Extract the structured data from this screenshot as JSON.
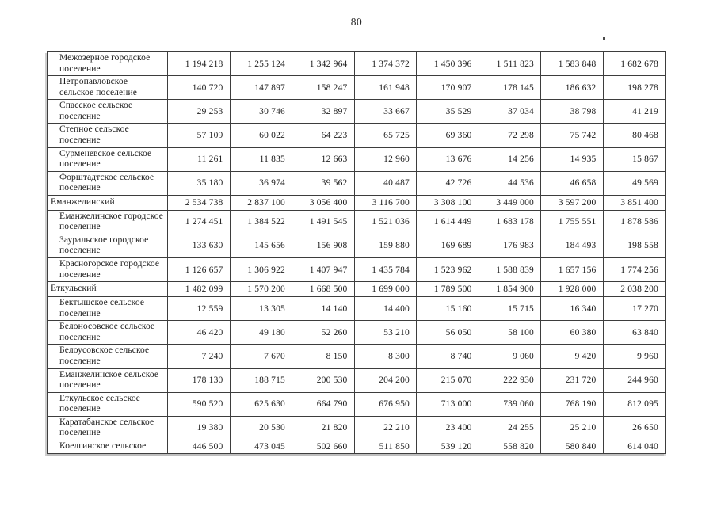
{
  "page": {
    "number": "80"
  },
  "table": {
    "rows": [
      {
        "name": "Межозерное городское поселение",
        "level": "settlement",
        "values": [
          "1 194 218",
          "1 255 124",
          "1 342 964",
          "1 374 372",
          "1 450 396",
          "1 511 823",
          "1 583 848",
          "1 682 678"
        ]
      },
      {
        "name": "Петропавловское сельское поселение",
        "level": "settlement",
        "values": [
          "140 720",
          "147 897",
          "158 247",
          "161 948",
          "170 907",
          "178 145",
          "186 632",
          "198 278"
        ]
      },
      {
        "name": "Спасское сельское поселение",
        "level": "settlement",
        "values": [
          "29 253",
          "30 746",
          "32 897",
          "33 667",
          "35 529",
          "37 034",
          "38 798",
          "41 219"
        ]
      },
      {
        "name": "Степное сельское поселение",
        "level": "settlement",
        "values": [
          "57 109",
          "60 022",
          "64 223",
          "65 725",
          "69 360",
          "72 298",
          "75 742",
          "80 468"
        ]
      },
      {
        "name": "Сурменевское сельское поселение",
        "level": "settlement",
        "values": [
          "11 261",
          "11 835",
          "12 663",
          "12 960",
          "13 676",
          "14 256",
          "14 935",
          "15 867"
        ]
      },
      {
        "name": "Форштадтское сельское поселение",
        "level": "settlement",
        "values": [
          "35 180",
          "36 974",
          "39 562",
          "40 487",
          "42 726",
          "44 536",
          "46 658",
          "49 569"
        ]
      },
      {
        "name": "Еманжелинский",
        "level": "district",
        "values": [
          "2 534 738",
          "2 837 100",
          "3 056 400",
          "3 116 700",
          "3 308 100",
          "3 449 000",
          "3 597 200",
          "3 851 400"
        ]
      },
      {
        "name": "Еманжелинское городское поселение",
        "level": "settlement",
        "values": [
          "1 274 451",
          "1 384 522",
          "1 491 545",
          "1 521 036",
          "1 614 449",
          "1 683 178",
          "1 755 551",
          "1 878 586"
        ]
      },
      {
        "name": "Зауральское городское поселение",
        "level": "settlement",
        "values": [
          "133 630",
          "145 656",
          "156 908",
          "159 880",
          "169 689",
          "176 983",
          "184 493",
          "198 558"
        ]
      },
      {
        "name": "Красногорское городское поселение",
        "level": "settlement",
        "values": [
          "1 126 657",
          "1 306 922",
          "1 407 947",
          "1 435 784",
          "1 523 962",
          "1 588 839",
          "1 657 156",
          "1 774 256"
        ]
      },
      {
        "name": "Еткульский",
        "level": "district",
        "values": [
          "1 482 099",
          "1 570 200",
          "1 668 500",
          "1 699 000",
          "1 789 500",
          "1 854 900",
          "1 928 000",
          "2 038 200"
        ]
      },
      {
        "name": "Бектышское сельское поселение",
        "level": "settlement",
        "values": [
          "12 559",
          "13 305",
          "14 140",
          "14 400",
          "15 160",
          "15 715",
          "16 340",
          "17 270"
        ]
      },
      {
        "name": "Белоносовское сельское поселение",
        "level": "settlement",
        "values": [
          "46 420",
          "49 180",
          "52 260",
          "53 210",
          "56 050",
          "58 100",
          "60 380",
          "63 840"
        ]
      },
      {
        "name": "Белоусовское сельское поселение",
        "level": "settlement",
        "values": [
          "7 240",
          "7 670",
          "8 150",
          "8 300",
          "8 740",
          "9 060",
          "9 420",
          "9 960"
        ]
      },
      {
        "name": "Еманжелинское сельское поселение",
        "level": "settlement",
        "values": [
          "178 130",
          "188 715",
          "200 530",
          "204 200",
          "215 070",
          "222 930",
          "231 720",
          "244 960"
        ]
      },
      {
        "name": "Еткульское сельское поселение",
        "level": "settlement",
        "values": [
          "590 520",
          "625 630",
          "664 790",
          "676 950",
          "713 000",
          "739 060",
          "768 190",
          "812 095"
        ]
      },
      {
        "name": "Каратабанское сельское поселение",
        "level": "settlement",
        "values": [
          "19 380",
          "20 530",
          "21 820",
          "22 210",
          "23 400",
          "24 255",
          "25 210",
          "26 650"
        ]
      },
      {
        "name": "Коелгинское сельское",
        "level": "settlement",
        "partial": true,
        "values": [
          "446 500",
          "473 045",
          "502 660",
          "511 850",
          "539 120",
          "558 820",
          "580 840",
          "614 040"
        ]
      }
    ]
  }
}
